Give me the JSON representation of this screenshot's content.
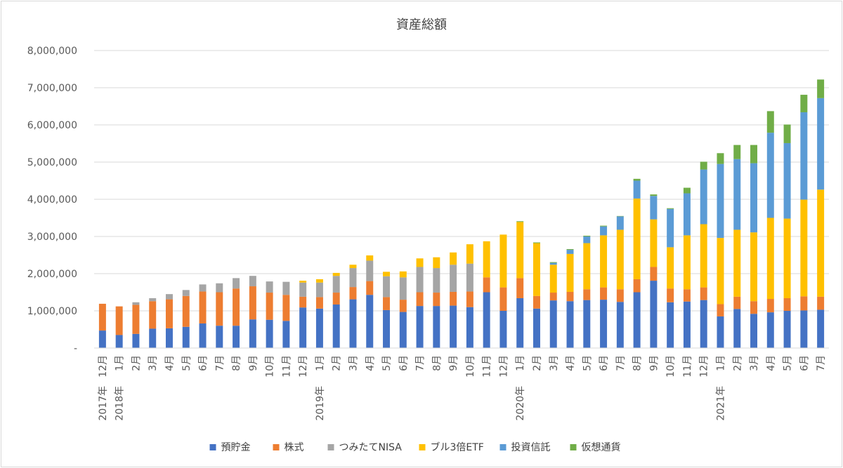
{
  "chart_data": {
    "type": "bar",
    "stacked": true,
    "title": "資産総額",
    "xlabel": "",
    "ylabel": "",
    "ylim": [
      0,
      8000000
    ],
    "y_ticks": [
      0,
      1000000,
      2000000,
      3000000,
      4000000,
      5000000,
      6000000,
      7000000,
      8000000
    ],
    "y_tick_labels": [
      "-",
      "1,000,000",
      "2,000,000",
      "3,000,000",
      "4,000,000",
      "5,000,000",
      "6,000,000",
      "7,000,000",
      "8,000,000"
    ],
    "grid": true,
    "legend_position": "bottom",
    "categories": [
      "12月",
      "1月",
      "2月",
      "3月",
      "4月",
      "5月",
      "6月",
      "7月",
      "8月",
      "9月",
      "10月",
      "11月",
      "12月",
      "1月",
      "2月",
      "3月",
      "4月",
      "5月",
      "6月",
      "7月",
      "8月",
      "9月",
      "10月",
      "11月",
      "12月",
      "1月",
      "2月",
      "3月",
      "4月",
      "5月",
      "6月",
      "7月",
      "8月",
      "9月",
      "10月",
      "11月",
      "12月",
      "1月",
      "2月",
      "3月",
      "4月",
      "5月",
      "6月",
      "7月"
    ],
    "year_labels": [
      {
        "index": 0,
        "label": "2017年"
      },
      {
        "index": 1,
        "label": "2018年"
      },
      {
        "index": 13,
        "label": "2019年"
      },
      {
        "index": 25,
        "label": "2020年"
      },
      {
        "index": 37,
        "label": "2021年"
      }
    ],
    "series": [
      {
        "name": "預貯金",
        "color": "#4472c4",
        "values": [
          470000,
          350000,
          380000,
          520000,
          530000,
          570000,
          660000,
          600000,
          600000,
          770000,
          760000,
          730000,
          1090000,
          1060000,
          1170000,
          1310000,
          1430000,
          1020000,
          970000,
          1130000,
          1130000,
          1140000,
          1100000,
          1500000,
          1000000,
          1340000,
          1060000,
          1280000,
          1260000,
          1290000,
          1300000,
          1240000,
          1500000,
          1810000,
          1230000,
          1250000,
          1290000,
          850000,
          1050000,
          920000,
          960000,
          1000000,
          1010000,
          1030000
        ]
      },
      {
        "name": "株式",
        "color": "#ed7d31",
        "values": [
          720000,
          770000,
          780000,
          740000,
          780000,
          830000,
          860000,
          900000,
          1000000,
          890000,
          730000,
          700000,
          290000,
          310000,
          320000,
          330000,
          370000,
          350000,
          330000,
          370000,
          360000,
          370000,
          420000,
          400000,
          630000,
          540000,
          340000,
          210000,
          250000,
          290000,
          330000,
          340000,
          350000,
          370000,
          370000,
          330000,
          340000,
          330000,
          330000,
          340000,
          360000,
          340000,
          380000,
          350000
        ]
      },
      {
        "name": "つみたてNISA",
        "color": "#a5a5a5",
        "values": [
          0,
          0,
          70000,
          80000,
          140000,
          160000,
          190000,
          240000,
          280000,
          280000,
          300000,
          350000,
          380000,
          390000,
          450000,
          510000,
          550000,
          560000,
          600000,
          680000,
          660000,
          730000,
          750000,
          0,
          0,
          0,
          0,
          0,
          0,
          0,
          0,
          0,
          0,
          0,
          0,
          0,
          0,
          0,
          0,
          0,
          0,
          0,
          0,
          0
        ]
      },
      {
        "name": "ブル3倍ETF",
        "color": "#ffc000",
        "values": [
          0,
          0,
          0,
          0,
          0,
          0,
          0,
          0,
          0,
          0,
          0,
          0,
          50000,
          90000,
          80000,
          90000,
          140000,
          120000,
          160000,
          230000,
          290000,
          330000,
          520000,
          970000,
          1420000,
          1510000,
          1420000,
          750000,
          1020000,
          1240000,
          1400000,
          1600000,
          2170000,
          1280000,
          1110000,
          1450000,
          1700000,
          1780000,
          1800000,
          1850000,
          2180000,
          2140000,
          2600000,
          2880000
        ]
      },
      {
        "name": "投資信託",
        "color": "#5b9bd5",
        "values": [
          0,
          0,
          0,
          0,
          0,
          0,
          0,
          0,
          0,
          0,
          0,
          0,
          0,
          0,
          0,
          0,
          0,
          0,
          0,
          0,
          0,
          0,
          0,
          0,
          0,
          0,
          0,
          50000,
          110000,
          180000,
          240000,
          360000,
          480000,
          630000,
          1030000,
          1130000,
          1470000,
          1990000,
          1900000,
          1860000,
          2290000,
          2030000,
          2350000,
          2460000
        ]
      },
      {
        "name": "仮想通貨",
        "color": "#70ad47",
        "values": [
          0,
          0,
          0,
          0,
          0,
          0,
          0,
          0,
          0,
          0,
          0,
          0,
          0,
          0,
          0,
          0,
          0,
          0,
          0,
          0,
          0,
          0,
          0,
          0,
          0,
          20000,
          20000,
          20000,
          20000,
          20000,
          20000,
          10000,
          50000,
          40000,
          20000,
          150000,
          210000,
          290000,
          380000,
          490000,
          580000,
          500000,
          470000,
          500000
        ]
      }
    ]
  }
}
